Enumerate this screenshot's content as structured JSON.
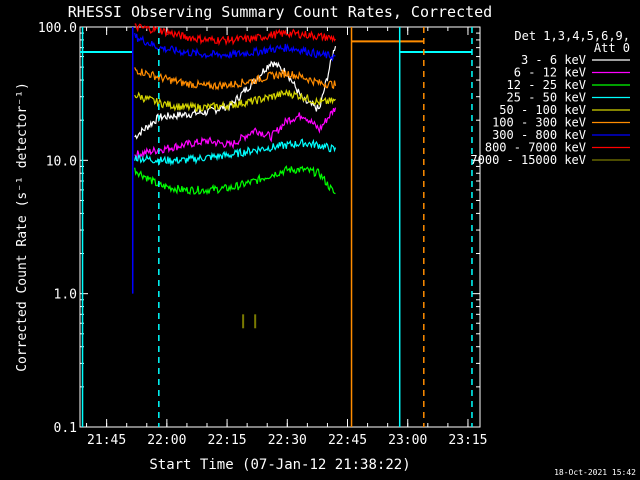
{
  "chart_data": {
    "type": "line",
    "title": "RHESSI Observing Summary Count Rates, Corrected",
    "xlabel": "Start Time (07-Jan-12 21:38:22)",
    "ylabel": "Corrected Count Rate (s⁻¹ detector⁻¹)",
    "yscale": "log",
    "ylim": [
      0.1,
      100
    ],
    "xlim": [
      "21:38:22",
      "23:18:00"
    ],
    "x_ticks": [
      "21:45",
      "22:00",
      "22:15",
      "22:30",
      "22:45",
      "23:00",
      "23:15"
    ],
    "y_ticks": [
      "0.1",
      "1.0",
      "10.0",
      "100.0"
    ],
    "legend_header": [
      "Det 1,3,4,5,6,9,",
      "Att 0"
    ],
    "legend_position": "right",
    "timestamp": "18-Oct-2021 15:42",
    "series": [
      {
        "name": "3 - 6 keV",
        "color": "#ffffff",
        "x": [
          "21:52",
          "21:58",
          "22:04",
          "22:10",
          "22:16",
          "22:22",
          "22:26",
          "22:30",
          "22:34",
          "22:38",
          "22:42"
        ],
        "values": [
          15,
          21,
          22,
          23,
          26,
          40,
          55,
          45,
          28,
          24,
          75
        ]
      },
      {
        "name": "6 - 12 keV",
        "color": "#ff00ff",
        "x": [
          "21:52",
          "21:58",
          "22:04",
          "22:10",
          "22:16",
          "22:22",
          "22:26",
          "22:30",
          "22:34",
          "22:38",
          "22:42"
        ],
        "values": [
          11,
          12,
          13,
          14,
          13,
          17,
          15,
          20,
          22,
          17,
          25
        ]
      },
      {
        "name": "12 - 25 keV",
        "color": "#00ff00",
        "x": [
          "21:52",
          "21:58",
          "22:04",
          "22:10",
          "22:16",
          "22:22",
          "22:26",
          "22:30",
          "22:34",
          "22:38",
          "22:42"
        ],
        "values": [
          8.5,
          6.5,
          6.0,
          6.0,
          6.2,
          7.0,
          7.8,
          8.5,
          8.5,
          8.0,
          5.5
        ]
      },
      {
        "name": "25 - 50 keV",
        "color": "#00ffff",
        "x": [
          "21:52",
          "21:58",
          "22:04",
          "22:10",
          "22:16",
          "22:22",
          "22:26",
          "22:30",
          "22:34",
          "22:38",
          "22:42"
        ],
        "values": [
          10.5,
          10,
          10,
          10.5,
          11,
          12,
          12.5,
          13,
          13.5,
          13,
          12
        ]
      },
      {
        "name": "50 - 100 keV",
        "color": "#d4d400",
        "x": [
          "21:52",
          "21:58",
          "22:04",
          "22:10",
          "22:16",
          "22:22",
          "22:26",
          "22:30",
          "22:34",
          "22:38",
          "22:42"
        ],
        "values": [
          31,
          27,
          25,
          25,
          26,
          28,
          30,
          32,
          30,
          27,
          28
        ]
      },
      {
        "name": "100 - 300 keV",
        "color": "#ff8c00",
        "x": [
          "21:52",
          "21:58",
          "22:04",
          "22:10",
          "22:16",
          "22:22",
          "22:26",
          "22:30",
          "22:34",
          "22:38",
          "22:42"
        ],
        "values": [
          48,
          42,
          38,
          36,
          37,
          40,
          43,
          45,
          42,
          38,
          37
        ]
      },
      {
        "name": "300 - 800 keV",
        "color": "#0000ff",
        "x": [
          "21:52",
          "21:58",
          "22:04",
          "22:10",
          "22:16",
          "22:22",
          "22:26",
          "22:30",
          "22:34",
          "22:38",
          "22:42"
        ],
        "values": [
          85,
          70,
          65,
          62,
          62,
          65,
          68,
          70,
          67,
          62,
          60
        ]
      },
      {
        "name": "800 - 7000 keV",
        "color": "#ff0000",
        "x": [
          "21:52",
          "21:58",
          "22:04",
          "22:10",
          "22:16",
          "22:22",
          "22:26",
          "22:30",
          "22:34",
          "22:38",
          "22:42"
        ],
        "values": [
          100,
          95,
          85,
          80,
          80,
          82,
          87,
          90,
          88,
          85,
          82
        ]
      },
      {
        "name": "7000 - 15000 keV",
        "color": "#7a7a00",
        "x": [],
        "values": []
      }
    ],
    "vertical_markers": [
      {
        "x": "21:39",
        "color": "#00ffff",
        "style": "solid"
      },
      {
        "x": "21:51:30",
        "color": "#0000ff",
        "style": "solid"
      },
      {
        "x": "21:58",
        "color": "#00ffff",
        "style": "dashed"
      },
      {
        "x": "22:46",
        "color": "#ff8c00",
        "style": "solid"
      },
      {
        "x": "22:58",
        "color": "#00ffff",
        "style": "solid"
      },
      {
        "x": "23:04",
        "color": "#ff8c00",
        "style": "dashed"
      },
      {
        "x": "23:16",
        "color": "#00ffff",
        "style": "dashed"
      }
    ],
    "horizontal_segments": [
      {
        "x": [
          "21:38:22",
          "21:51:30"
        ],
        "y": 65,
        "color": "#00ffff"
      },
      {
        "x": [
          "22:46",
          "23:04"
        ],
        "y": 78,
        "color": "#ff8c00"
      },
      {
        "x": [
          "22:58",
          "23:16"
        ],
        "y": 65,
        "color": "#00ffff"
      }
    ],
    "short_ticks": [
      {
        "x": "22:19",
        "y": [
          0.55,
          0.7
        ],
        "color": "#7a7a00"
      },
      {
        "x": "22:22",
        "y": [
          0.55,
          0.7
        ],
        "color": "#7a7a00"
      }
    ]
  }
}
